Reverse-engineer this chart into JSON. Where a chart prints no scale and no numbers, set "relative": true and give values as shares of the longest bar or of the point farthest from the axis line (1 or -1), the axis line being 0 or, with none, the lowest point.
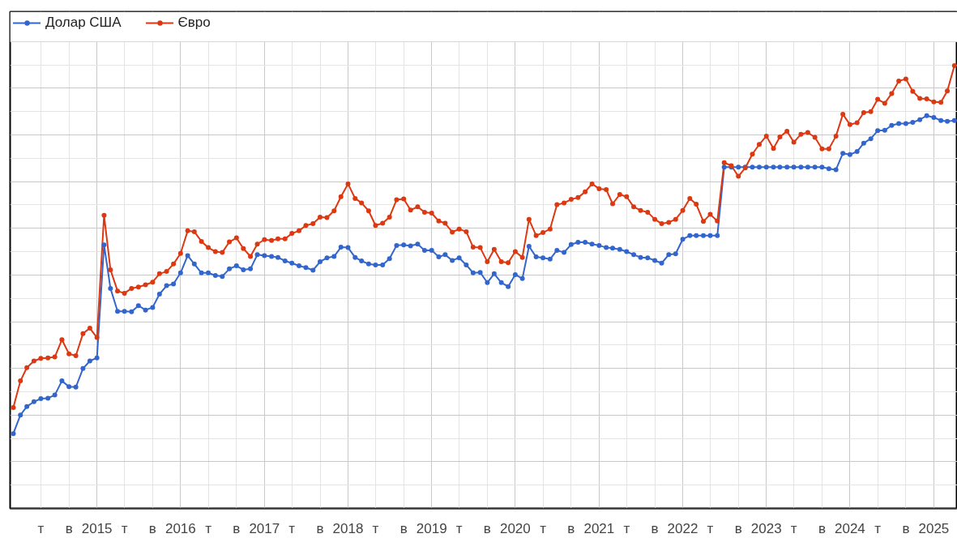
{
  "chart_data": {
    "type": "line",
    "relative": true,
    "marker": "circle",
    "line_style": "solid",
    "grid": true,
    "legend": "top left",
    "x": [
      "2014-01",
      "2014-02",
      "2014-03",
      "2014-04",
      "2014-05",
      "2014-06",
      "2014-07",
      "2014-08",
      "2014-09",
      "2014-10",
      "2014-11",
      "2014-12",
      "2015-01",
      "2015-02",
      "2015-03",
      "2015-04",
      "2015-05",
      "2015-06",
      "2015-07",
      "2015-08",
      "2015-09",
      "2015-10",
      "2015-11",
      "2015-12",
      "2016-01",
      "2016-02",
      "2016-03",
      "2016-04",
      "2016-05",
      "2016-06",
      "2016-07",
      "2016-08",
      "2016-09",
      "2016-10",
      "2016-11",
      "2016-12",
      "2017-01",
      "2017-02",
      "2017-03",
      "2017-04",
      "2017-05",
      "2017-06",
      "2017-07",
      "2017-08",
      "2017-09",
      "2017-10",
      "2017-11",
      "2017-12",
      "2018-01",
      "2018-02",
      "2018-03",
      "2018-04",
      "2018-05",
      "2018-06",
      "2018-07",
      "2018-08",
      "2018-09",
      "2018-10",
      "2018-11",
      "2018-12",
      "2019-01",
      "2019-02",
      "2019-03",
      "2019-04",
      "2019-05",
      "2019-06",
      "2019-07",
      "2019-08",
      "2019-09",
      "2019-10",
      "2019-11",
      "2019-12",
      "2020-01",
      "2020-02",
      "2020-03",
      "2020-04",
      "2020-05",
      "2020-06",
      "2020-07",
      "2020-08",
      "2020-09",
      "2020-10",
      "2020-11",
      "2020-12",
      "2021-01",
      "2021-02",
      "2021-03",
      "2021-04",
      "2021-05",
      "2021-06",
      "2021-07",
      "2021-08",
      "2021-09",
      "2021-10",
      "2021-11",
      "2021-12",
      "2022-01",
      "2022-02",
      "2022-03",
      "2022-04",
      "2022-05",
      "2022-06",
      "2022-07",
      "2022-08",
      "2022-09",
      "2022-10",
      "2022-11",
      "2022-12",
      "2023-01",
      "2023-02",
      "2023-03",
      "2023-04",
      "2023-05",
      "2023-06",
      "2023-07",
      "2023-08",
      "2023-09",
      "2023-10",
      "2023-11",
      "2023-12",
      "2024-01",
      "2024-02",
      "2024-03",
      "2024-04",
      "2024-05",
      "2024-06",
      "2024-07",
      "2024-08",
      "2024-09",
      "2024-10",
      "2024-11",
      "2024-12",
      "2025-01",
      "2025-02",
      "2025-03",
      "2025-04"
    ],
    "xlim": [
      "2013-12-18",
      "2025-04-14"
    ],
    "xticks": [
      {
        "value": "2014-05",
        "label": "т"
      },
      {
        "value": "2014-09",
        "label": "в"
      },
      {
        "value": "2015-01",
        "label": "2015"
      },
      {
        "value": "2015-05",
        "label": "т"
      },
      {
        "value": "2015-09",
        "label": "в"
      },
      {
        "value": "2016-01",
        "label": "2016"
      },
      {
        "value": "2016-05",
        "label": "т"
      },
      {
        "value": "2016-09",
        "label": "в"
      },
      {
        "value": "2017-01",
        "label": "2017"
      },
      {
        "value": "2017-05",
        "label": "т"
      },
      {
        "value": "2017-09",
        "label": "в"
      },
      {
        "value": "2018-01",
        "label": "2018"
      },
      {
        "value": "2018-05",
        "label": "т"
      },
      {
        "value": "2018-09",
        "label": "в"
      },
      {
        "value": "2019-01",
        "label": "2019"
      },
      {
        "value": "2019-05",
        "label": "т"
      },
      {
        "value": "2019-09",
        "label": "в"
      },
      {
        "value": "2020-01",
        "label": "2020"
      },
      {
        "value": "2020-05",
        "label": "т"
      },
      {
        "value": "2020-09",
        "label": "в"
      },
      {
        "value": "2021-01",
        "label": "2021"
      },
      {
        "value": "2021-05",
        "label": "т"
      },
      {
        "value": "2021-09",
        "label": "в"
      },
      {
        "value": "2022-01",
        "label": "2022"
      },
      {
        "value": "2022-05",
        "label": "т"
      },
      {
        "value": "2022-09",
        "label": "в"
      },
      {
        "value": "2023-01",
        "label": "2023"
      },
      {
        "value": "2023-05",
        "label": "т"
      },
      {
        "value": "2023-09",
        "label": "в"
      },
      {
        "value": "2024-01",
        "label": "2024"
      },
      {
        "value": "2024-05",
        "label": "т"
      },
      {
        "value": "2024-09",
        "label": "в"
      },
      {
        "value": "2025-01",
        "label": "2025"
      }
    ],
    "series": [
      {
        "name": "Долар США",
        "color": "#3366cc",
        "values": [
          0.169,
          0.211,
          0.23,
          0.241,
          0.248,
          0.249,
          0.256,
          0.288,
          0.275,
          0.274,
          0.316,
          0.333,
          0.34,
          0.595,
          0.497,
          0.445,
          0.445,
          0.444,
          0.458,
          0.448,
          0.454,
          0.484,
          0.503,
          0.507,
          0.532,
          0.571,
          0.552,
          0.532,
          0.532,
          0.526,
          0.524,
          0.541,
          0.548,
          0.539,
          0.541,
          0.573,
          0.571,
          0.569,
          0.567,
          0.559,
          0.554,
          0.548,
          0.544,
          0.538,
          0.557,
          0.566,
          0.569,
          0.59,
          0.589,
          0.567,
          0.559,
          0.552,
          0.55,
          0.55,
          0.564,
          0.594,
          0.595,
          0.593,
          0.597,
          0.583,
          0.583,
          0.568,
          0.573,
          0.56,
          0.566,
          0.55,
          0.532,
          0.533,
          0.51,
          0.53,
          0.51,
          0.501,
          0.528,
          0.519,
          0.592,
          0.568,
          0.566,
          0.563,
          0.583,
          0.578,
          0.596,
          0.601,
          0.601,
          0.597,
          0.594,
          0.589,
          0.588,
          0.585,
          0.58,
          0.573,
          0.567,
          0.566,
          0.56,
          0.554,
          0.573,
          0.575,
          0.608,
          0.616,
          0.616,
          0.616,
          0.616,
          0.616,
          0.771,
          0.771,
          0.771,
          0.771,
          0.771,
          0.771,
          0.771,
          0.771,
          0.771,
          0.771,
          0.771,
          0.771,
          0.771,
          0.771,
          0.771,
          0.767,
          0.765,
          0.802,
          0.799,
          0.806,
          0.825,
          0.835,
          0.853,
          0.854,
          0.865,
          0.869,
          0.869,
          0.872,
          0.878,
          0.887,
          0.883,
          0.876,
          0.874,
          0.876
        ]
      },
      {
        "name": "Євро",
        "color": "#dc3912",
        "values": [
          0.228,
          0.288,
          0.318,
          0.333,
          0.339,
          0.34,
          0.342,
          0.381,
          0.349,
          0.345,
          0.395,
          0.407,
          0.386,
          0.662,
          0.539,
          0.491,
          0.486,
          0.497,
          0.5,
          0.505,
          0.511,
          0.53,
          0.535,
          0.552,
          0.576,
          0.627,
          0.625,
          0.603,
          0.589,
          0.58,
          0.578,
          0.602,
          0.611,
          0.587,
          0.569,
          0.597,
          0.607,
          0.605,
          0.609,
          0.609,
          0.621,
          0.627,
          0.639,
          0.643,
          0.658,
          0.657,
          0.672,
          0.704,
          0.733,
          0.7,
          0.69,
          0.672,
          0.639,
          0.644,
          0.658,
          0.697,
          0.699,
          0.674,
          0.681,
          0.669,
          0.667,
          0.649,
          0.644,
          0.624,
          0.631,
          0.625,
          0.59,
          0.589,
          0.557,
          0.585,
          0.557,
          0.555,
          0.58,
          0.567,
          0.653,
          0.616,
          0.623,
          0.631,
          0.686,
          0.69,
          0.698,
          0.702,
          0.715,
          0.733,
          0.722,
          0.72,
          0.688,
          0.709,
          0.704,
          0.681,
          0.673,
          0.669,
          0.653,
          0.643,
          0.646,
          0.653,
          0.673,
          0.7,
          0.687,
          0.648,
          0.664,
          0.649,
          0.781,
          0.774,
          0.75,
          0.769,
          0.8,
          0.822,
          0.841,
          0.813,
          0.839,
          0.852,
          0.827,
          0.845,
          0.849,
          0.838,
          0.812,
          0.812,
          0.841,
          0.89,
          0.867,
          0.871,
          0.894,
          0.896,
          0.924,
          0.915,
          0.937,
          0.965,
          0.97,
          0.942,
          0.926,
          0.925,
          0.918,
          0.917,
          0.943,
          1.0
        ]
      }
    ]
  }
}
